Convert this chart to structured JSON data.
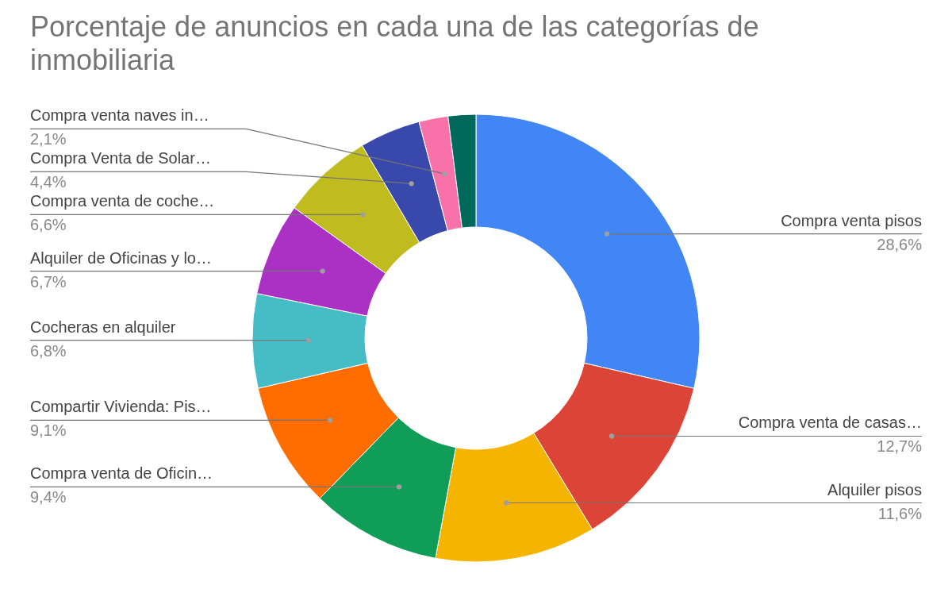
{
  "chart_data": {
    "type": "donut",
    "title": "Porcentaje de anuncios en cada una de las categorías de inmobiliaria",
    "categories": [
      "Compra venta pisos",
      "Compra venta de casas…",
      "Alquiler pisos",
      "Compra venta de Oficin…",
      "Compartir Vivienda: Pis…",
      "Cocheras en alquiler",
      "Alquiler de Oficinas y lo…",
      "Compra venta de coche…",
      "Compra Venta de Solar…",
      "Compra venta naves in…",
      null
    ],
    "values": [
      28.6,
      12.7,
      11.6,
      9.4,
      9.1,
      6.8,
      6.7,
      6.6,
      4.4,
      2.1,
      2.0
    ],
    "value_labels": [
      "28,6%",
      "12,7%",
      "11,6%",
      "9,4%",
      "9,1%",
      "6,8%",
      "6,7%",
      "6,6%",
      "4,4%",
      "2,1%",
      null
    ],
    "colors": [
      "#4285f4",
      "#db4437",
      "#f4b400",
      "#0f9d58",
      "#ff6d01",
      "#46bdc6",
      "#ab30c4",
      "#c0bc1f",
      "#3949ab",
      "#f871a9",
      "#00695c"
    ],
    "legend": false
  }
}
